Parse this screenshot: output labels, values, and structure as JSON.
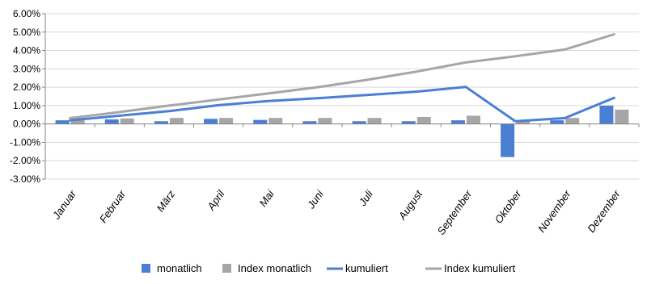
{
  "chart_data": {
    "type": "bar",
    "categories": [
      "Januar",
      "Februar",
      "März",
      "April",
      "Mai",
      "Juni",
      "Juli",
      "August",
      "September",
      "Oktober",
      "November",
      "Dezember"
    ],
    "series": [
      {
        "name": "monatlich",
        "kind": "bar",
        "color": "#4a7fd4",
        "values": [
          0.2,
          0.25,
          0.15,
          0.28,
          0.22,
          0.15,
          0.15,
          0.15,
          0.2,
          -1.8,
          0.2,
          1.0
        ]
      },
      {
        "name": "Index monatlich",
        "kind": "bar",
        "color": "#a6a6a6",
        "values": [
          0.32,
          0.3,
          0.33,
          0.33,
          0.33,
          0.33,
          0.33,
          0.38,
          0.45,
          0.15,
          0.33,
          0.78
        ]
      },
      {
        "name": "kumuliert",
        "kind": "line",
        "color": "#4a7fd4",
        "values": [
          0.2,
          0.45,
          0.7,
          1.02,
          1.25,
          1.4,
          1.58,
          1.76,
          2.02,
          0.15,
          0.32,
          1.42
        ]
      },
      {
        "name": "Index kumuliert",
        "kind": "line",
        "color": "#a6a6a6",
        "values": [
          0.32,
          0.65,
          1.0,
          1.33,
          1.66,
          2.0,
          2.4,
          2.85,
          3.35,
          3.68,
          4.05,
          4.88
        ]
      }
    ],
    "y_ticks": [
      "6.00%",
      "5.00%",
      "4.00%",
      "3.00%",
      "2.00%",
      "1.00%",
      "0.00%",
      "-1.00%",
      "-2.00%",
      "-3.00%"
    ],
    "ylim": [
      -3,
      6
    ],
    "title": "",
    "xlabel": "",
    "ylabel": "",
    "grid": true,
    "legend_position": "bottom"
  }
}
